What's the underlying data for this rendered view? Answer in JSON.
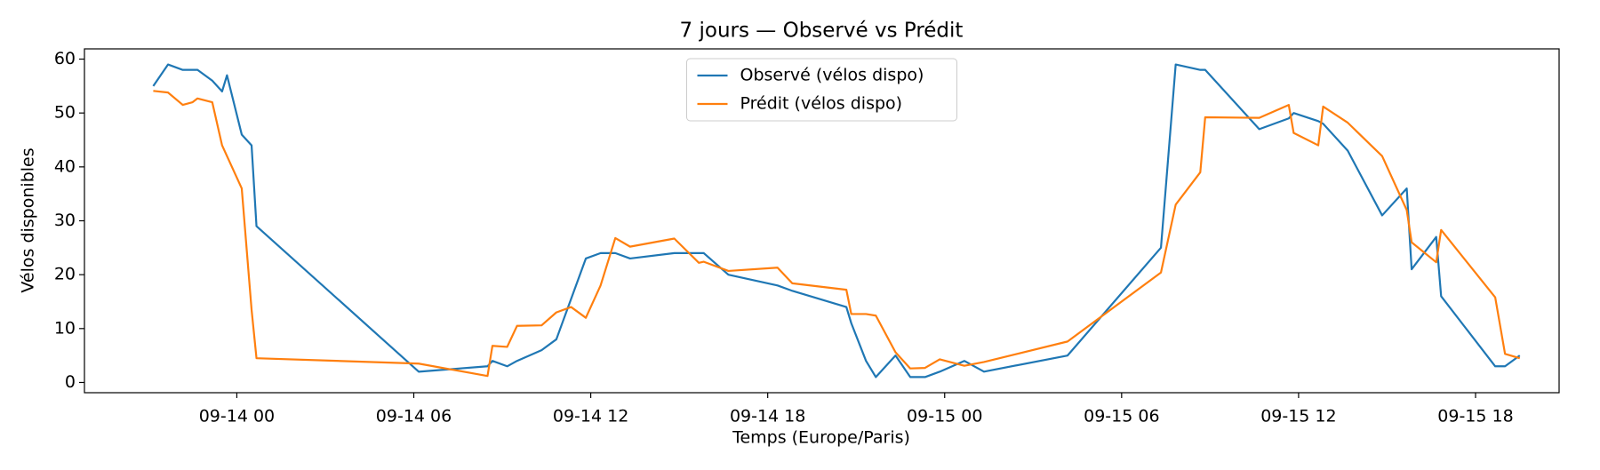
{
  "chart_data": {
    "type": "line",
    "title": "7 jours — Observé vs Prédit",
    "x_label": "Temps (Europe/Paris)",
    "y_label": "Vélos disponibles",
    "x": [
      "09-13 21:10",
      "09-13 21:40",
      "09-13 22:10",
      "09-13 22:30",
      "09-13 22:40",
      "09-13 23:10",
      "09-13 23:30",
      "09-13 23:40",
      "09-14 00:10",
      "09-14 00:30",
      "09-14 00:40",
      "09-14 06:10",
      "09-14 08:30",
      "09-14 08:40",
      "09-14 09:10",
      "09-14 09:30",
      "09-14 10:20",
      "09-14 10:50",
      "09-14 11:20",
      "09-14 11:50",
      "09-14 12:20",
      "09-14 12:50",
      "09-14 13:20",
      "09-14 14:50",
      "09-14 15:40",
      "09-14 15:50",
      "09-14 16:40",
      "09-14 18:20",
      "09-14 18:50",
      "09-14 20:40",
      "09-14 20:50",
      "09-14 21:20",
      "09-14 21:40",
      "09-14 22:20",
      "09-14 22:50",
      "09-14 23:20",
      "09-14 23:50",
      "09-15 00:40",
      "09-15 01:20",
      "09-15 04:10",
      "09-15 07:20",
      "09-15 07:50",
      "09-15 08:40",
      "09-15 08:50",
      "09-15 10:40",
      "09-15 11:40",
      "09-15 11:50",
      "09-15 12:40",
      "09-15 12:50",
      "09-15 13:40",
      "09-15 14:50",
      "09-15 15:40",
      "09-15 15:50",
      "09-15 16:40",
      "09-15 16:50",
      "09-15 18:40",
      "09-15 19:00",
      "09-15 19:30"
    ],
    "series": [
      {
        "name": "Observé (vélos dispo)",
        "color": "#1f77b4",
        "values": [
          55,
          59,
          58,
          58,
          58,
          56,
          54,
          57,
          46,
          44,
          29,
          2,
          3,
          4,
          3,
          4,
          6,
          8,
          15.5,
          23,
          24,
          24,
          23,
          24,
          24,
          24,
          20,
          18,
          17,
          14,
          11,
          4,
          1,
          5,
          1,
          1,
          2,
          4,
          2,
          5,
          25,
          59,
          58,
          58,
          47,
          49,
          50,
          48.5,
          48,
          43,
          31,
          36,
          21,
          27,
          16,
          3,
          3,
          5
        ]
      },
      {
        "name": "Prédit (vélos dispo)",
        "color": "#ff7f0e",
        "values": [
          54.1,
          53.8,
          51.5,
          52,
          52.7,
          52,
          44,
          42,
          36,
          13.5,
          4.5,
          3.5,
          1.2,
          6.8,
          6.6,
          10.5,
          10.6,
          13,
          14,
          12,
          18,
          26.8,
          25.2,
          26.7,
          22.2,
          22.4,
          20.7,
          21.3,
          18.4,
          17.2,
          12.7,
          12.7,
          12.4,
          5.6,
          2.6,
          2.7,
          4.3,
          3.1,
          3.8,
          7.6,
          20.4,
          33,
          39,
          49.2,
          49.1,
          51.5,
          46.3,
          44,
          51.2,
          48.2,
          42,
          32,
          26,
          22.3,
          28.3,
          15.8,
          5.3,
          4.5
        ]
      }
    ],
    "xlim": [
      "09-13 18:50",
      "09-15 20:50"
    ],
    "xticks": [
      {
        "value": "09-14 00:00",
        "label": "09-14 00"
      },
      {
        "value": "09-14 06:00",
        "label": "09-14 06"
      },
      {
        "value": "09-14 12:00",
        "label": "09-14 12"
      },
      {
        "value": "09-14 18:00",
        "label": "09-14 18"
      },
      {
        "value": "09-15 00:00",
        "label": "09-15 00"
      },
      {
        "value": "09-15 06:00",
        "label": "09-15 06"
      },
      {
        "value": "09-15 12:00",
        "label": "09-15 12"
      },
      {
        "value": "09-15 18:00",
        "label": "09-15 18"
      }
    ],
    "ylim": [
      -1.9,
      61.9
    ],
    "yticks": [
      0,
      10,
      20,
      30,
      40,
      50,
      60
    ],
    "grid": false,
    "legend": "upper center"
  }
}
